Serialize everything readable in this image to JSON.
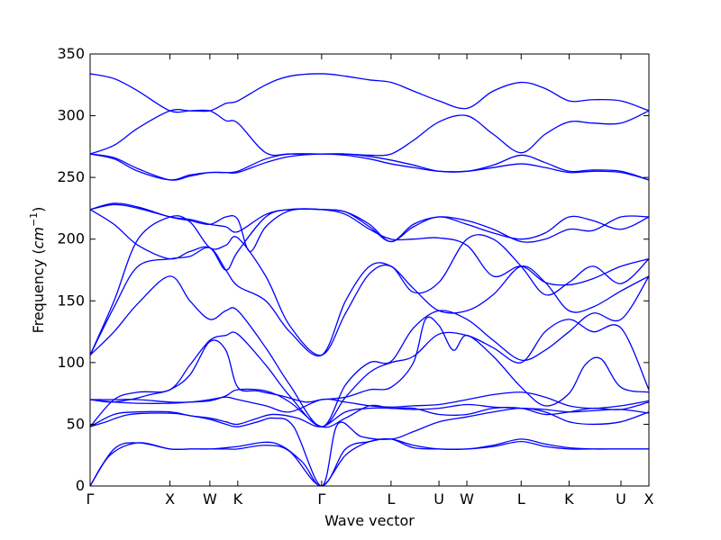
{
  "chart_data": {
    "type": "line",
    "xlabel": "Wave vector",
    "ylabel_prefix": "Frequency (",
    "ylabel_math": "cm",
    "ylabel_sup": "−1",
    "ylabel_suffix": ")",
    "ylim": [
      0,
      350
    ],
    "yticks": [
      0,
      50,
      100,
      150,
      200,
      250,
      300,
      350
    ],
    "grid": false,
    "legend": "none",
    "line_color": "#0000ff",
    "xlim": [
      0,
      7.0
    ],
    "kpoints": [
      {
        "label": "Γ",
        "x": 0.0
      },
      {
        "label": "X",
        "x": 1.0
      },
      {
        "label": "W",
        "x": 1.5
      },
      {
        "label": "K",
        "x": 1.85
      },
      {
        "label": "Γ",
        "x": 2.9
      },
      {
        "label": "L",
        "x": 3.77
      },
      {
        "label": "U",
        "x": 4.37
      },
      {
        "label": "W",
        "x": 4.72
      },
      {
        "label": "L",
        "x": 5.4
      },
      {
        "label": "K",
        "x": 6.0
      },
      {
        "label": "U",
        "x": 6.65
      },
      {
        "label": "X",
        "x": 7.0
      }
    ],
    "bands": [
      {
        "x": [
          0,
          0.25,
          0.6,
          1.0,
          1.25,
          1.5,
          1.7,
          1.85,
          2.3,
          2.65,
          2.9,
          3.2,
          3.5,
          3.77,
          4.05,
          4.37,
          4.72,
          5.05,
          5.4,
          5.7,
          6.0,
          6.3,
          6.65,
          7.0
        ],
        "y": [
          0,
          25,
          35,
          30,
          30,
          30,
          31,
          32,
          35,
          20,
          0,
          25,
          36,
          38,
          33,
          30,
          30,
          33,
          38,
          34,
          31,
          30,
          30,
          30
        ]
      },
      {
        "x": [
          0,
          0.3,
          0.6,
          1.0,
          1.25,
          1.5,
          1.7,
          1.85,
          2.2,
          2.5,
          2.9,
          3.2,
          3.5,
          3.77,
          4.05,
          4.37,
          4.72,
          5.05,
          5.4,
          5.7,
          6.0,
          6.3,
          6.65,
          7.0
        ],
        "y": [
          0,
          30,
          35,
          30,
          30,
          30,
          30,
          30,
          33,
          28,
          0,
          30,
          36,
          38,
          31,
          30,
          30,
          32,
          36,
          32,
          30,
          30,
          30,
          30
        ]
      },
      {
        "x": [
          0,
          0.2,
          0.5,
          1.0,
          1.25,
          1.5,
          1.7,
          1.85,
          2.1,
          2.3,
          2.55,
          2.9,
          3.1,
          3.4,
          3.77,
          4.05,
          4.37,
          4.72,
          5.05,
          5.4,
          5.7,
          6.0,
          6.3,
          6.65,
          7.0
        ],
        "y": [
          48,
          52,
          58,
          59,
          57,
          54,
          50,
          48,
          52,
          55,
          48,
          0,
          50,
          40,
          38,
          44,
          52,
          56,
          60,
          63,
          60,
          52,
          50,
          52,
          60
        ]
      },
      {
        "x": [
          0,
          0.3,
          0.6,
          1.0,
          1.25,
          1.5,
          1.7,
          1.85,
          2.1,
          2.3,
          2.6,
          2.9,
          3.2,
          3.5,
          3.77,
          4.05,
          4.37,
          4.72,
          5.05,
          5.4,
          5.7,
          6.0,
          6.3,
          6.65,
          7.0
        ],
        "y": [
          48,
          58,
          60,
          60,
          57,
          55,
          52,
          50,
          55,
          58,
          55,
          48,
          60,
          63,
          63,
          62,
          63,
          66,
          64,
          63,
          62,
          60,
          61,
          62,
          59
        ]
      },
      {
        "x": [
          0,
          0.3,
          0.6,
          1.0,
          1.25,
          1.5,
          1.7,
          1.85,
          2.2,
          2.5,
          2.9,
          3.2,
          3.5,
          3.77,
          4.05,
          4.37,
          4.72,
          5.05,
          5.4,
          5.7,
          6.0,
          6.3,
          6.65,
          7.0
        ],
        "y": [
          70,
          68,
          67,
          67,
          68,
          69,
          73,
          78,
          77,
          68,
          48,
          55,
          65,
          63,
          63,
          58,
          58,
          63,
          63,
          58,
          60,
          63,
          62,
          68
        ]
      },
      {
        "x": [
          0,
          0.3,
          0.6,
          1.0,
          1.25,
          1.5,
          1.7,
          1.85,
          2.2,
          2.5,
          2.9,
          3.2,
          3.5,
          3.77,
          4.05,
          4.37,
          4.72,
          5.05,
          5.4,
          5.7,
          6.0,
          6.3,
          6.65,
          7.0
        ],
        "y": [
          70,
          70,
          70,
          68,
          68,
          70,
          72,
          70,
          65,
          60,
          70,
          68,
          65,
          64,
          65,
          66,
          70,
          74,
          76,
          72,
          65,
          63,
          65,
          69
        ]
      },
      {
        "x": [
          0,
          0.3,
          0.6,
          1.0,
          1.25,
          1.5,
          1.7,
          1.85,
          2.2,
          2.5,
          2.9,
          3.2,
          3.5,
          3.77,
          4.05,
          4.37,
          4.72,
          5.05,
          5.4,
          5.7,
          6.0,
          6.3,
          6.65,
          7.0
        ],
        "y": [
          48,
          70,
          76,
          78,
          98,
          118,
          122,
          123,
          98,
          73,
          48,
          72,
          92,
          100,
          105,
          123,
          122,
          112,
          100,
          125,
          135,
          125,
          128,
          78
        ]
      },
      {
        "x": [
          0,
          0.25,
          0.5,
          0.75,
          1.0,
          1.25,
          1.5,
          1.7,
          1.85,
          2.1,
          2.4,
          2.7,
          2.9,
          3.2,
          3.5,
          3.77,
          4.05,
          4.2,
          4.37,
          4.55,
          4.72,
          5.05,
          5.4,
          5.7,
          6.0,
          6.2,
          6.4,
          6.65,
          7.0
        ],
        "y": [
          70,
          68,
          70,
          74,
          78,
          90,
          117,
          110,
          80,
          77,
          73,
          68,
          70,
          72,
          78,
          80,
          100,
          135,
          130,
          110,
          122,
          105,
          80,
          65,
          75,
          98,
          103,
          80,
          76
        ]
      },
      {
        "x": [
          0,
          0.3,
          0.6,
          1.0,
          1.25,
          1.5,
          1.7,
          1.85,
          2.2,
          2.5,
          2.9,
          3.2,
          3.5,
          3.77,
          4.05,
          4.37,
          4.72,
          5.05,
          5.4,
          5.7,
          6.0,
          6.3,
          6.65,
          7.0
        ],
        "y": [
          106,
          125,
          148,
          170,
          150,
          135,
          142,
          142,
          112,
          82,
          48,
          82,
          100,
          101,
          128,
          142,
          135,
          118,
          102,
          110,
          125,
          140,
          135,
          170
        ]
      },
      {
        "x": [
          0,
          0.3,
          0.6,
          1.0,
          1.25,
          1.5,
          1.7,
          1.85,
          2.2,
          2.5,
          2.9,
          3.2,
          3.5,
          3.77,
          4.05,
          4.37,
          4.72,
          5.05,
          5.4,
          5.7,
          6.0,
          6.3,
          6.65,
          7.0
        ],
        "y": [
          106,
          145,
          178,
          184,
          186,
          193,
          175,
          162,
          150,
          125,
          106,
          150,
          178,
          178,
          160,
          142,
          142,
          155,
          178,
          165,
          142,
          145,
          158,
          170
        ]
      },
      {
        "x": [
          0,
          0.3,
          0.6,
          1.0,
          1.25,
          1.5,
          1.7,
          1.85,
          2.2,
          2.5,
          2.9,
          3.2,
          3.5,
          3.77,
          4.05,
          4.37,
          4.72,
          5.05,
          5.4,
          5.7,
          6.0,
          6.3,
          6.65,
          7.0
        ],
        "y": [
          106,
          150,
          200,
          218,
          214,
          193,
          195,
          201,
          170,
          130,
          106,
          140,
          172,
          178,
          157,
          165,
          200,
          200,
          178,
          155,
          165,
          178,
          164,
          184
        ]
      },
      {
        "x": [
          0,
          0.3,
          0.6,
          1.0,
          1.25,
          1.5,
          1.7,
          1.85,
          2.2,
          2.5,
          2.9,
          3.2,
          3.5,
          3.77,
          4.05,
          4.37,
          4.72,
          5.05,
          5.4,
          5.7,
          6.0,
          6.3,
          6.65,
          7.0
        ],
        "y": [
          224,
          212,
          195,
          184,
          190,
          193,
          175,
          190,
          218,
          224,
          224,
          220,
          208,
          200,
          200,
          201,
          195,
          170,
          178,
          165,
          163,
          168,
          178,
          184
        ]
      },
      {
        "x": [
          0,
          0.3,
          0.6,
          1.0,
          1.25,
          1.5,
          1.7,
          1.85,
          2.2,
          2.5,
          2.9,
          3.2,
          3.5,
          3.77,
          4.05,
          4.37,
          4.72,
          5.05,
          5.4,
          5.7,
          6.0,
          6.3,
          6.65,
          7.0
        ],
        "y": [
          224,
          228,
          225,
          218,
          216,
          212,
          210,
          206,
          220,
          224,
          224,
          222,
          210,
          198,
          210,
          218,
          212,
          205,
          200,
          205,
          218,
          215,
          208,
          218
        ]
      },
      {
        "x": [
          0,
          0.3,
          0.6,
          1.0,
          1.25,
          1.5,
          1.7,
          1.85,
          2.0,
          2.2,
          2.5,
          2.9,
          3.2,
          3.5,
          3.77,
          4.05,
          4.37,
          4.72,
          5.05,
          5.4,
          5.7,
          6.0,
          6.3,
          6.65,
          7.0
        ],
        "y": [
          224,
          229,
          226,
          218,
          215,
          212,
          218,
          216,
          190,
          210,
          223,
          224,
          222,
          212,
          198,
          212,
          218,
          215,
          208,
          198,
          200,
          208,
          207,
          218,
          218
        ]
      },
      {
        "x": [
          0,
          0.3,
          0.6,
          1.0,
          1.25,
          1.5,
          1.7,
          1.85,
          2.2,
          2.5,
          2.9,
          3.2,
          3.5,
          3.77,
          4.05,
          4.37,
          4.72,
          5.05,
          5.4,
          5.7,
          6.0,
          6.3,
          6.65,
          7.0
        ],
        "y": [
          269,
          265,
          255,
          248,
          252,
          254,
          254,
          254,
          262,
          267,
          269,
          268,
          265,
          261,
          258,
          255,
          255,
          258,
          261,
          258,
          254,
          255,
          254,
          248
        ]
      },
      {
        "x": [
          0,
          0.3,
          0.6,
          1.0,
          1.25,
          1.5,
          1.7,
          1.85,
          2.2,
          2.5,
          2.9,
          3.2,
          3.5,
          3.77,
          4.05,
          4.37,
          4.72,
          5.05,
          5.4,
          5.7,
          6.0,
          6.3,
          6.65,
          7.0
        ],
        "y": [
          269,
          266,
          257,
          248,
          251,
          254,
          254,
          255,
          265,
          269,
          269,
          269,
          267,
          264,
          260,
          255,
          255,
          260,
          268,
          262,
          255,
          256,
          255,
          248
        ]
      },
      {
        "x": [
          0,
          0.3,
          0.6,
          1.0,
          1.25,
          1.5,
          1.7,
          1.85,
          2.2,
          2.5,
          2.9,
          3.2,
          3.5,
          3.77,
          4.05,
          4.37,
          4.72,
          5.05,
          5.4,
          5.7,
          6.0,
          6.3,
          6.65,
          7.0
        ],
        "y": [
          269,
          276,
          290,
          304,
          304,
          304,
          296,
          294,
          270,
          269,
          269,
          269,
          268,
          269,
          280,
          295,
          300,
          285,
          270,
          285,
          295,
          294,
          294,
          304
        ]
      },
      {
        "x": [
          0,
          0.3,
          0.6,
          1.0,
          1.25,
          1.5,
          1.7,
          1.85,
          2.2,
          2.5,
          2.9,
          3.2,
          3.5,
          3.77,
          4.05,
          4.37,
          4.72,
          5.05,
          5.4,
          5.7,
          6.0,
          6.3,
          6.65,
          7.0
        ],
        "y": [
          334,
          330,
          320,
          304,
          304,
          304,
          310,
          312,
          325,
          332,
          334,
          332,
          329,
          327,
          320,
          312,
          306,
          320,
          327,
          322,
          312,
          313,
          312,
          304
        ]
      }
    ]
  }
}
